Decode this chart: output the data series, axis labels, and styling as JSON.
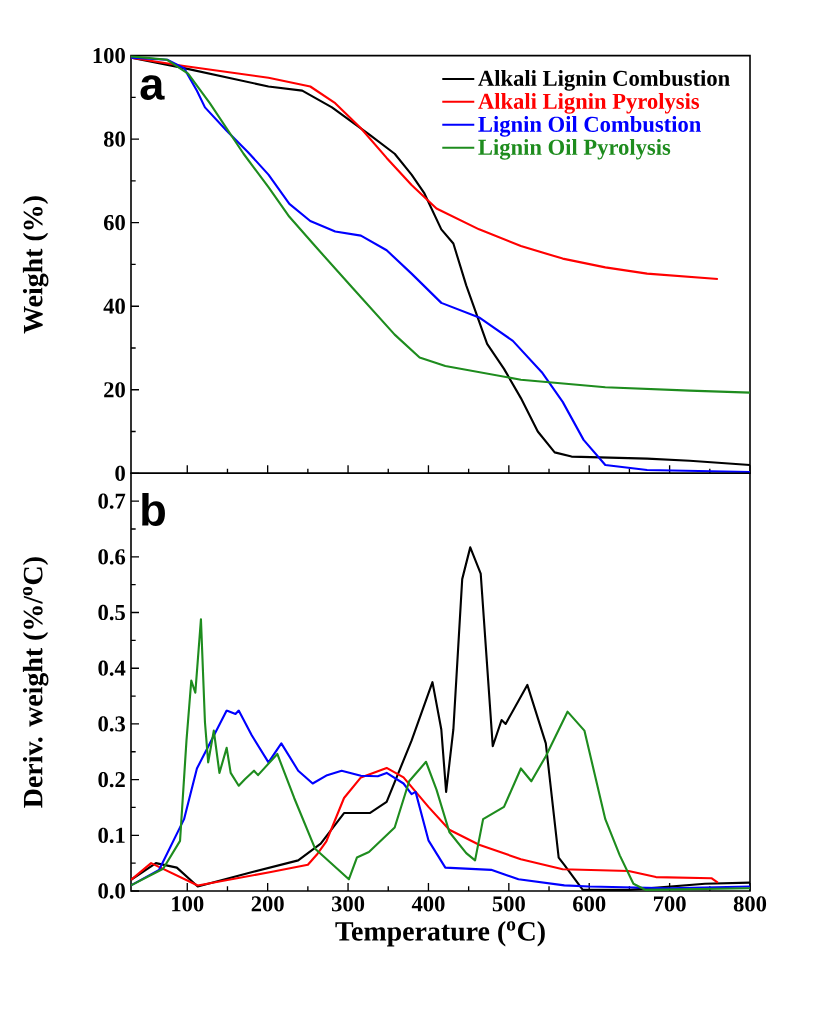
{
  "chart_data": [
    {
      "type": "line",
      "ylabel": "Weight (%)",
      "annotations": [
        "a"
      ],
      "xlim": [
        30,
        800
      ],
      "xticks": [
        100,
        200,
        300,
        400,
        500,
        600,
        700,
        800
      ],
      "ylim": [
        0,
        100
      ],
      "yticks": [
        0,
        20,
        40,
        60,
        80,
        100
      ],
      "tick_labels": "y",
      "legend": "top right",
      "series": [
        {
          "name": "Alkali Lignin Combustion",
          "color": "#000000",
          "x": [
            30,
            96,
            201,
            243,
            280,
            327,
            358,
            379,
            395,
            416,
            431,
            447,
            473,
            494,
            515,
            536,
            557,
            578,
            672,
            725,
            800
          ],
          "values": [
            99.5,
            97,
            92.6,
            91.6,
            87.6,
            81,
            76.5,
            71.5,
            67,
            58.4,
            55,
            45,
            31,
            25,
            18,
            10,
            5,
            4,
            3.5,
            3,
            2
          ]
        },
        {
          "name": "Alkali Lignin Pyrolysis",
          "color": "#ff0000",
          "x": [
            30,
            96,
            201,
            253,
            284,
            316,
            348,
            379,
            410,
            463,
            515,
            567,
            620,
            672,
            760
          ],
          "values": [
            99.5,
            97.5,
            94.7,
            92.6,
            88.6,
            82.6,
            75.5,
            69,
            63.4,
            58.4,
            54.4,
            51.4,
            49.3,
            47.8,
            46.5
          ]
        },
        {
          "name": "Lignin Oil Combustion",
          "color": "#0000ff",
          "x": [
            30,
            75,
            96,
            112,
            122,
            149,
            175,
            201,
            227,
            253,
            284,
            316,
            348,
            379,
            416,
            463,
            505,
            541,
            567,
            593,
            620,
            672,
            800
          ],
          "values": [
            99.5,
            99,
            97,
            91.6,
            87.6,
            82,
            77,
            71.5,
            64.5,
            60.4,
            57.9,
            56.9,
            53.4,
            47.8,
            40.8,
            37.3,
            31.7,
            24.2,
            17.1,
            8,
            2,
            0.8,
            0.3
          ]
        },
        {
          "name": "Lignin Oil Pyrolysis",
          "color": "#1e8c1e",
          "x": [
            30,
            75,
            101,
            128,
            170,
            201,
            227,
            259,
            306,
            358,
            389,
            421,
            515,
            620,
            725,
            800
          ],
          "values": [
            99.8,
            99,
            95.7,
            88.6,
            76.5,
            68.5,
            61.4,
            54.4,
            44.3,
            33.2,
            27.7,
            25.7,
            22.4,
            20.6,
            19.8,
            19.3
          ]
        }
      ]
    },
    {
      "type": "line",
      "xlabel": "Temperature ($^{o}$C)",
      "ylabel": "Deriv. weight (%/$^{o}$C)",
      "annotations": [
        "b"
      ],
      "xlim": [
        30,
        800
      ],
      "xticks": [
        100,
        200,
        300,
        400,
        500,
        600,
        700,
        800
      ],
      "ylim": [
        0,
        0.75
      ],
      "yticks": [
        {
          "value": 0,
          "label": "0.0"
        },
        0.1,
        0.2,
        0.3,
        0.4,
        0.5,
        0.6,
        0.7
      ],
      "series": [
        {
          "color": "#000000",
          "x": [
            30,
            61,
            87,
            113,
            181,
            238,
            266,
            295,
            327,
            348,
            379,
            405,
            416,
            422,
            431,
            442,
            452,
            465,
            480,
            491,
            496,
            523,
            546,
            562,
            569,
            592,
            650,
            744,
            800
          ],
          "values": [
            0.02,
            0.05,
            0.042,
            0.008,
            0.034,
            0.055,
            0.085,
            0.14,
            0.14,
            0.16,
            0.27,
            0.375,
            0.29,
            0.178,
            0.29,
            0.56,
            0.617,
            0.57,
            0.26,
            0.307,
            0.3,
            0.37,
            0.265,
            0.06,
            0.047,
            0.002,
            0.002,
            0.013,
            0.015
          ]
        },
        {
          "color": "#ff0000",
          "x": [
            30,
            55,
            113,
            204,
            250,
            261,
            273,
            295,
            316,
            348,
            369,
            400,
            426,
            463,
            515,
            567,
            649,
            683,
            752,
            760
          ],
          "values": [
            0.02,
            0.05,
            0.01,
            0.034,
            0.047,
            0.065,
            0.089,
            0.167,
            0.204,
            0.221,
            0.204,
            0.151,
            0.11,
            0.083,
            0.057,
            0.039,
            0.036,
            0.025,
            0.023,
            0.015
          ]
        },
        {
          "color": "#0000ff",
          "x": [
            30,
            65,
            96,
            112,
            128,
            149,
            160,
            164,
            180,
            201,
            217,
            238,
            256,
            274,
            292,
            316,
            337,
            348,
            369,
            379,
            384,
            400,
            421,
            478,
            512,
            569,
            600,
            700,
            800
          ],
          "values": [
            0.01,
            0.038,
            0.129,
            0.22,
            0.265,
            0.324,
            0.318,
            0.324,
            0.28,
            0.231,
            0.265,
            0.216,
            0.193,
            0.208,
            0.216,
            0.207,
            0.206,
            0.212,
            0.193,
            0.174,
            0.178,
            0.091,
            0.042,
            0.038,
            0.021,
            0.01,
            0.008,
            0.005,
            0.008
          ]
        },
        {
          "color": "#1e8c1e",
          "x": [
            30,
            70,
            91,
            99,
            105,
            110,
            117,
            122,
            126,
            133,
            140,
            149,
            154,
            164,
            172,
            183,
            188,
            212,
            233,
            259,
            301,
            311,
            326,
            358,
            376,
            397,
            410,
            426,
            447,
            458,
            468,
            494,
            515,
            528,
            546,
            573,
            594,
            620,
            638,
            655,
            670,
            800
          ],
          "values": [
            0.01,
            0.04,
            0.09,
            0.27,
            0.378,
            0.356,
            0.488,
            0.303,
            0.231,
            0.288,
            0.212,
            0.257,
            0.212,
            0.189,
            0.201,
            0.216,
            0.208,
            0.246,
            0.167,
            0.076,
            0.021,
            0.06,
            0.07,
            0.114,
            0.197,
            0.232,
            0.182,
            0.106,
            0.068,
            0.055,
            0.129,
            0.151,
            0.22,
            0.197,
            0.242,
            0.322,
            0.288,
            0.129,
            0.064,
            0.013,
            0.002,
            0.005
          ]
        }
      ]
    }
  ]
}
